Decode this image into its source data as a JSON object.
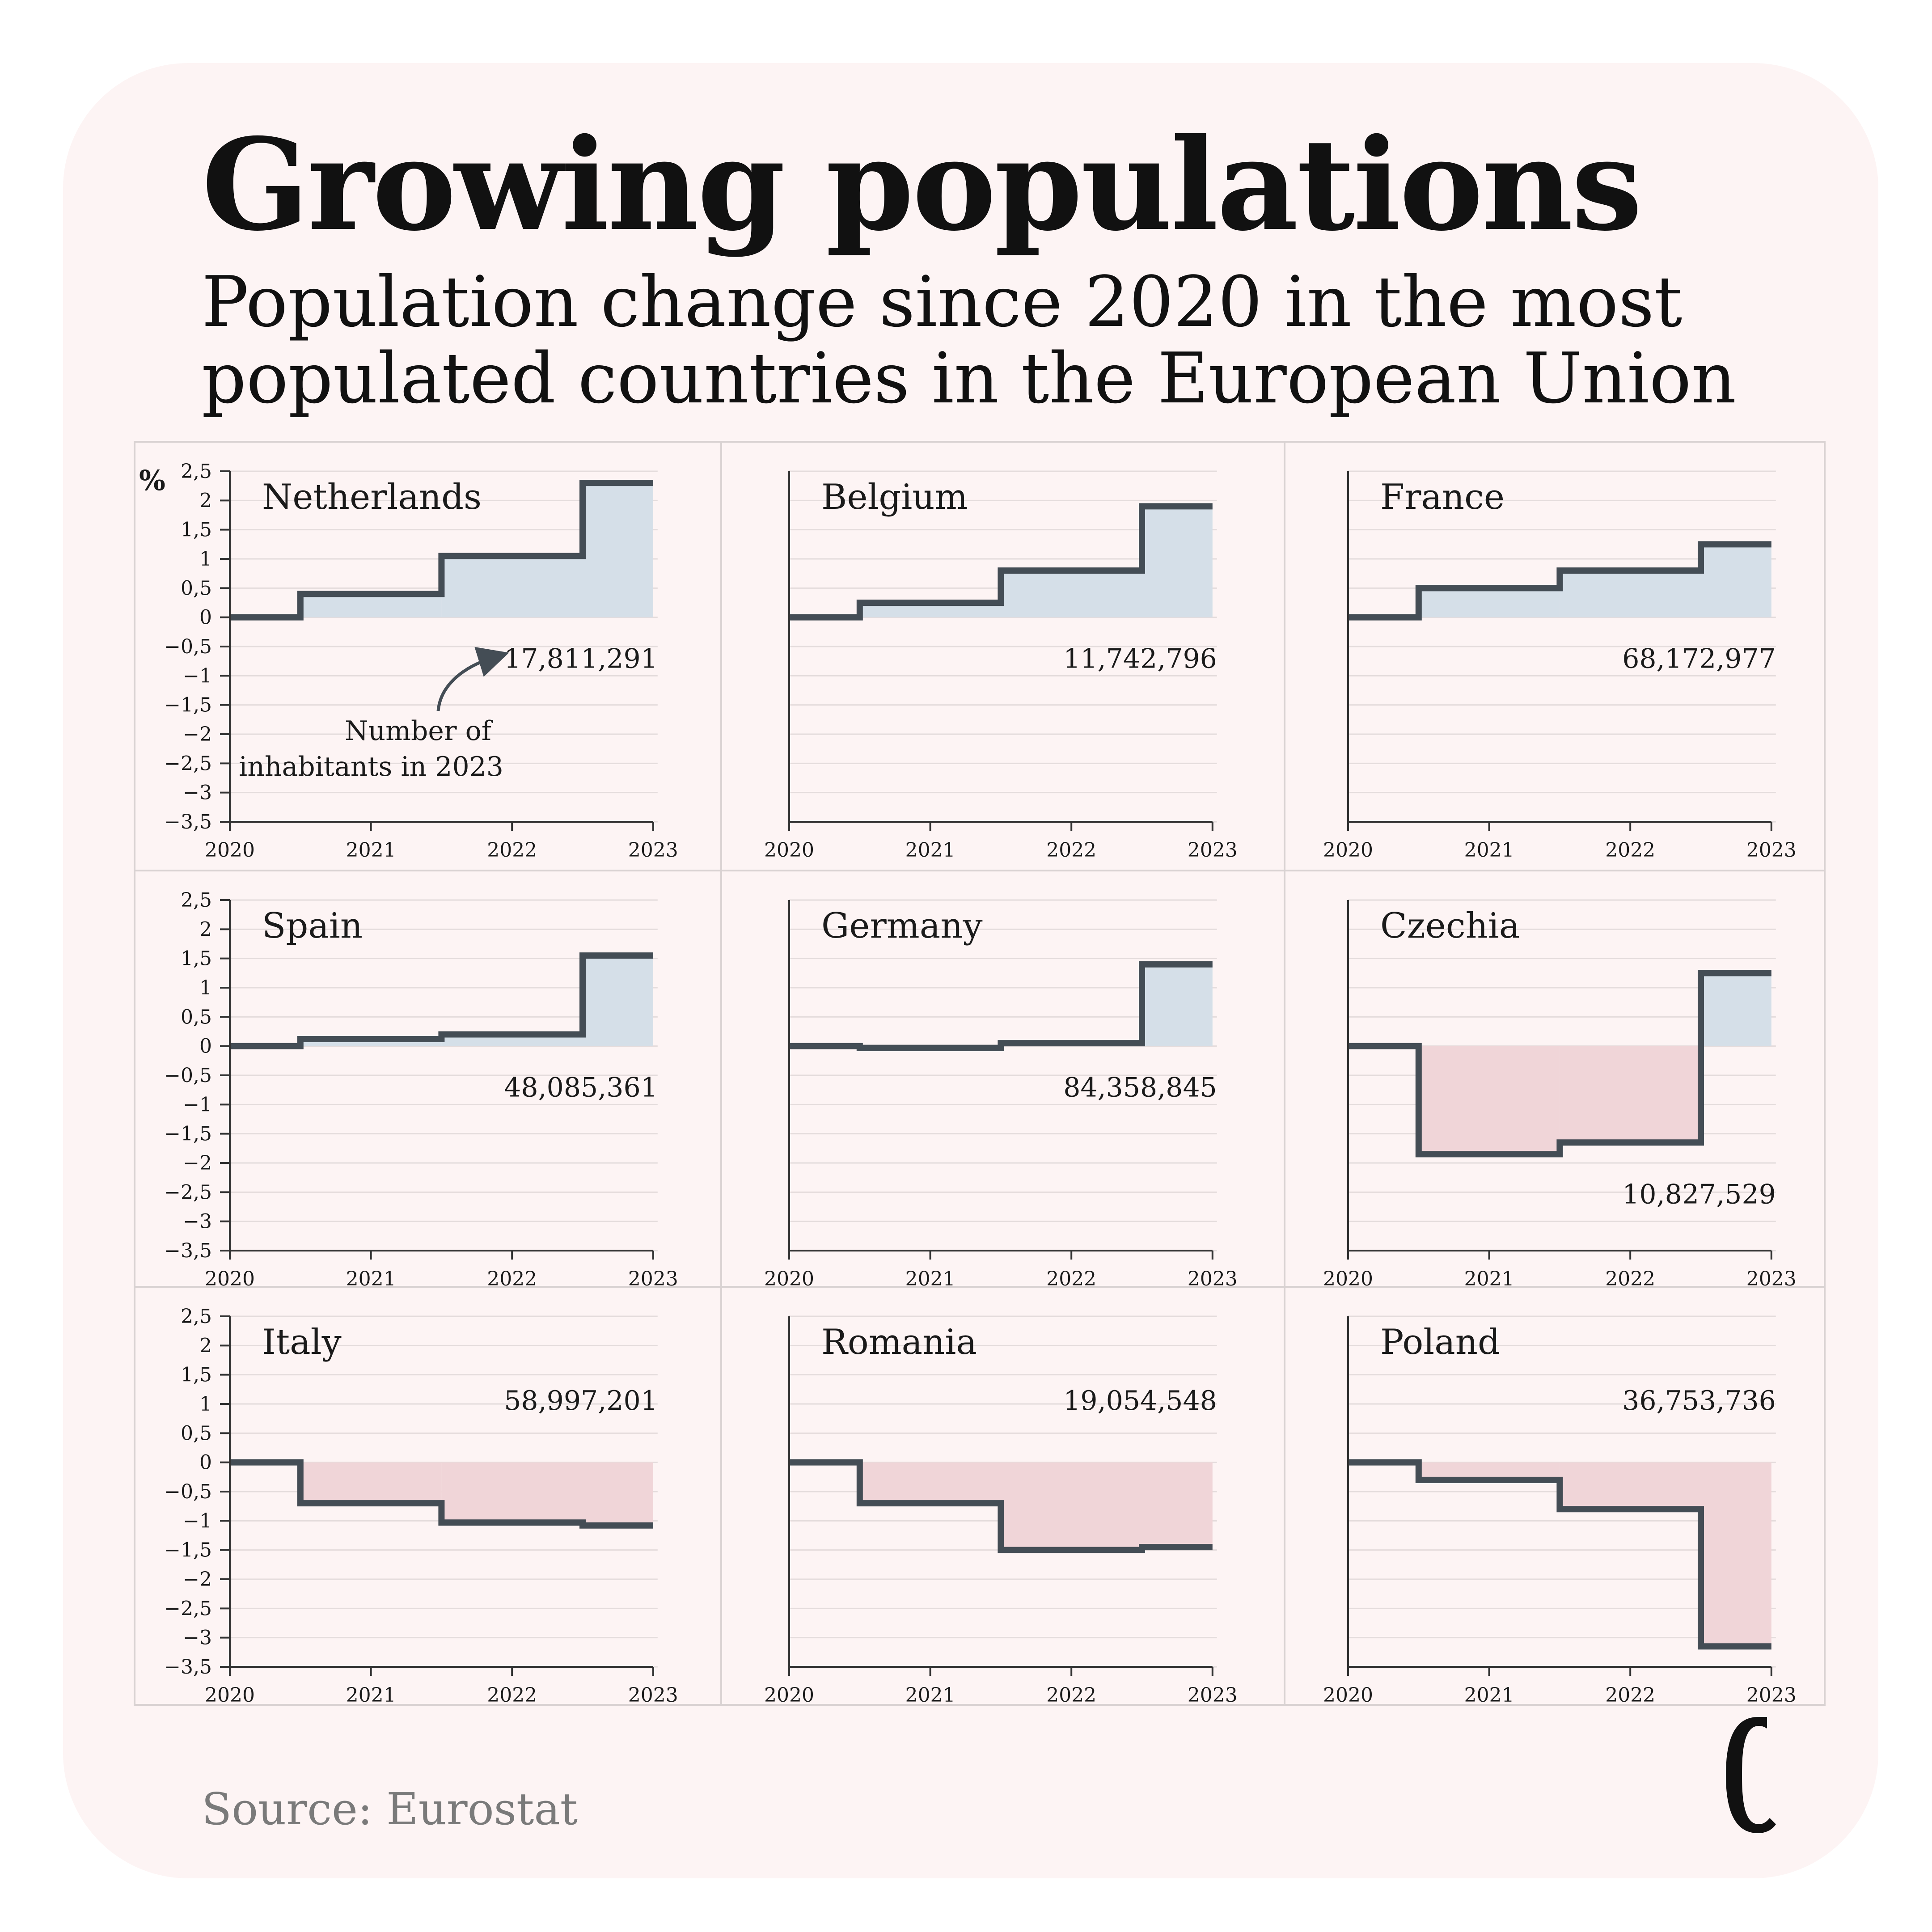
{
  "title": "Growing populations",
  "subtitle": "Population change since 2020 in the most populated countries in the European Union",
  "source": "Source: Eurostat",
  "annotation": [
    "Number of",
    "inhabitants in 2023"
  ],
  "colors": {
    "positive": "#d5dfe8",
    "negative": "#f0d5d8",
    "line": "#444d55",
    "background": "#fdf4f4"
  },
  "chart_data": {
    "type": "line",
    "step": true,
    "unit_label": "%",
    "x": [
      "2020",
      "2021",
      "2022",
      "2023"
    ],
    "ylim": [
      -3.5,
      2.5
    ],
    "yticks": [
      "2,5",
      "2",
      "1,5",
      "1",
      "0,5",
      "0",
      "−0,5",
      "−1",
      "−1,5",
      "−2",
      "−2,5",
      "−3",
      "−3,5"
    ],
    "ytick_values": [
      2.5,
      2,
      1.5,
      1,
      0.5,
      0,
      -0.5,
      -1,
      -1.5,
      -2,
      -2.5,
      -3,
      -3.5
    ],
    "grid": true,
    "panels": [
      {
        "name": "Netherlands",
        "values": [
          0,
          0.4,
          1.05,
          2.3
        ],
        "population": "17,811,291"
      },
      {
        "name": "Belgium",
        "values": [
          0,
          0.25,
          0.8,
          1.9
        ],
        "population": "11,742,796"
      },
      {
        "name": "France",
        "values": [
          0,
          0.5,
          0.8,
          1.25
        ],
        "population": "68,172,977"
      },
      {
        "name": "Spain",
        "values": [
          0,
          0.12,
          0.2,
          1.55
        ],
        "population": "48,085,361"
      },
      {
        "name": "Germany",
        "values": [
          0,
          -0.03,
          0.05,
          1.4
        ],
        "population": "84,358,845"
      },
      {
        "name": "Czechia",
        "values": [
          0,
          -1.85,
          -1.65,
          1.25
        ],
        "population": "10,827,529"
      },
      {
        "name": "Italy",
        "values": [
          0,
          -0.7,
          -1.03,
          -1.08
        ],
        "population": "58,997,201"
      },
      {
        "name": "Romania",
        "values": [
          0,
          -0.7,
          -1.5,
          -1.45
        ],
        "population": "19,054,548"
      },
      {
        "name": "Poland",
        "values": [
          0,
          -0.3,
          -0.8,
          -3.15
        ],
        "population": "36,753,736"
      }
    ]
  }
}
